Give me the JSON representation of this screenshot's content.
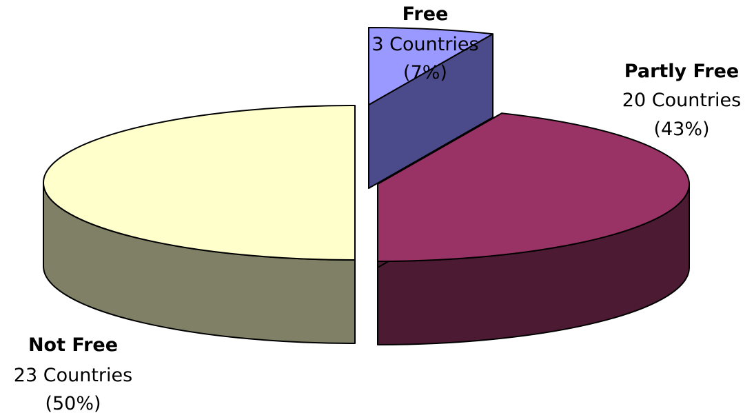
{
  "chart_data": {
    "type": "pie",
    "style": "3d-exploded",
    "title": "",
    "slices": [
      {
        "name": "Free",
        "count_label": "3 Countries",
        "percent_label": "(7%)",
        "value": 3,
        "percent": 7,
        "color": "#9999ff",
        "side_color": "#4b4b8c"
      },
      {
        "name": "Partly Free",
        "count_label": "20 Countries",
        "percent_label": "(43%)",
        "value": 20,
        "percent": 43,
        "color": "#993366",
        "side_color": "#4d1a33"
      },
      {
        "name": "Not Free",
        "count_label": "23 Countries",
        "percent_label": "(50%)",
        "value": 23,
        "percent": 50,
        "color": "#ffffcc",
        "side_color": "#808066"
      }
    ],
    "legend": "none"
  }
}
